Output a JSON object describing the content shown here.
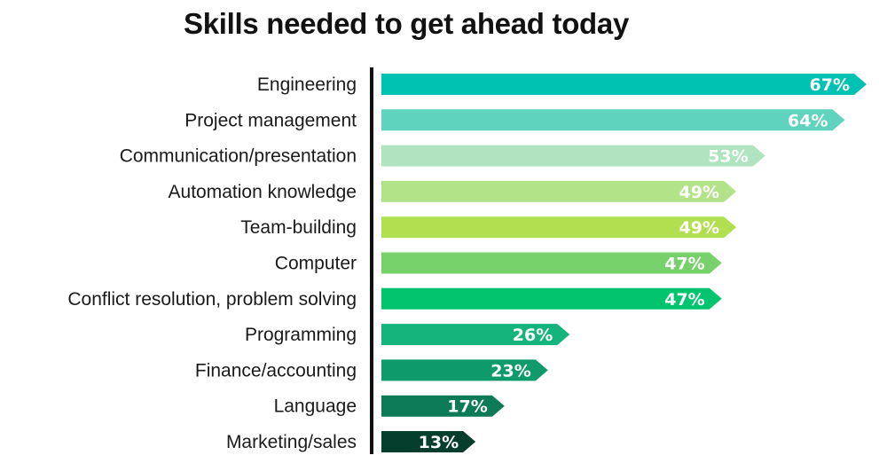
{
  "chart_data": {
    "type": "bar",
    "orientation": "horizontal",
    "title": "Skills needed to get ahead today",
    "xlabel": "",
    "ylabel": "",
    "xlim": [
      0,
      67
    ],
    "grid": false,
    "legend": "none",
    "unit": "%",
    "categories": [
      "Engineering",
      "Project management",
      "Communication/presentation",
      "Automation knowledge",
      "Team-building",
      "Computer",
      "Conflict resolution, problem solving",
      "Programming",
      "Finance/accounting",
      "Language",
      "Marketing/sales"
    ],
    "values": [
      67,
      64,
      53,
      49,
      49,
      47,
      47,
      26,
      23,
      17,
      13
    ],
    "value_labels": [
      "67%",
      "64%",
      "53%",
      "49%",
      "49%",
      "47%",
      "47%",
      "26%",
      "23%",
      "17%",
      "13%"
    ],
    "colors": [
      "#00c2b2",
      "#5fd3bd",
      "#b0e3bf",
      "#b3e388",
      "#b2df50",
      "#77d16a",
      "#02c46e",
      "#16b47d",
      "#0f9a6b",
      "#0c7a56",
      "#053e2c"
    ],
    "axis_color": "#111111"
  }
}
